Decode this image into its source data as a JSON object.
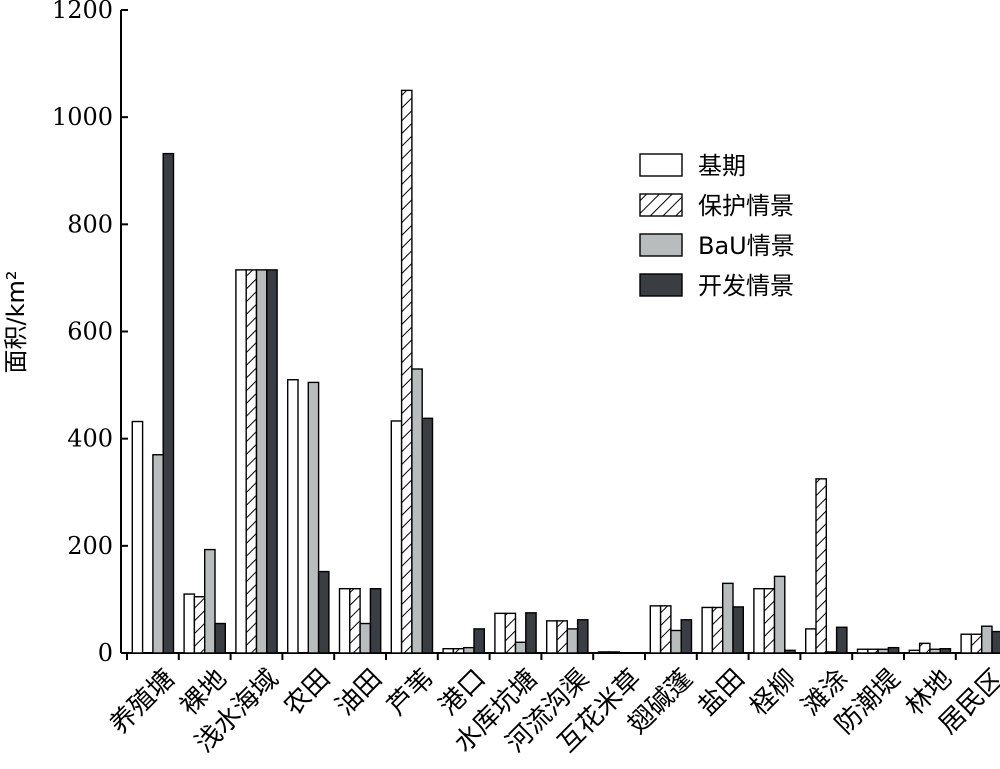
{
  "chart_data": {
    "type": "bar",
    "ylabel": "面积/km²",
    "ylim": [
      0,
      1200
    ],
    "yticks": [
      0,
      200,
      400,
      600,
      800,
      1000,
      1200
    ],
    "grid": false,
    "legend_position": "top-right",
    "categories": [
      "养殖塘",
      "裸地",
      "浅水海域",
      "农田",
      "油田",
      "芦苇",
      "港口",
      "水库坑塘",
      "河流沟渠",
      "互花米草",
      "翅碱蓬",
      "盐田",
      "柽柳",
      "滩涂",
      "防潮堤",
      "林地",
      "居民区"
    ],
    "series": [
      {
        "name": "基期",
        "color": "#ffffff",
        "pattern": "none",
        "values": [
          432,
          110,
          715,
          510,
          120,
          433,
          8,
          74,
          60,
          2,
          88,
          85,
          120,
          45,
          7,
          5,
          35
        ]
      },
      {
        "name": "保护情景",
        "color": "#ffffff",
        "pattern": "hatch",
        "values": [
          0,
          105,
          715,
          0,
          120,
          1050,
          8,
          74,
          60,
          2,
          88,
          85,
          120,
          325,
          7,
          18,
          35
        ]
      },
      {
        "name": "BaU情景",
        "color": "#b8bcbd",
        "pattern": "none",
        "values": [
          370,
          193,
          715,
          505,
          55,
          530,
          10,
          20,
          45,
          0,
          42,
          130,
          143,
          2,
          7,
          7,
          50
        ]
      },
      {
        "name": "开发情景",
        "color": "#3a3d42",
        "pattern": "none",
        "values": [
          932,
          55,
          715,
          152,
          120,
          438,
          45,
          75,
          62,
          0,
          62,
          86,
          5,
          48,
          10,
          8,
          40
        ]
      }
    ]
  }
}
